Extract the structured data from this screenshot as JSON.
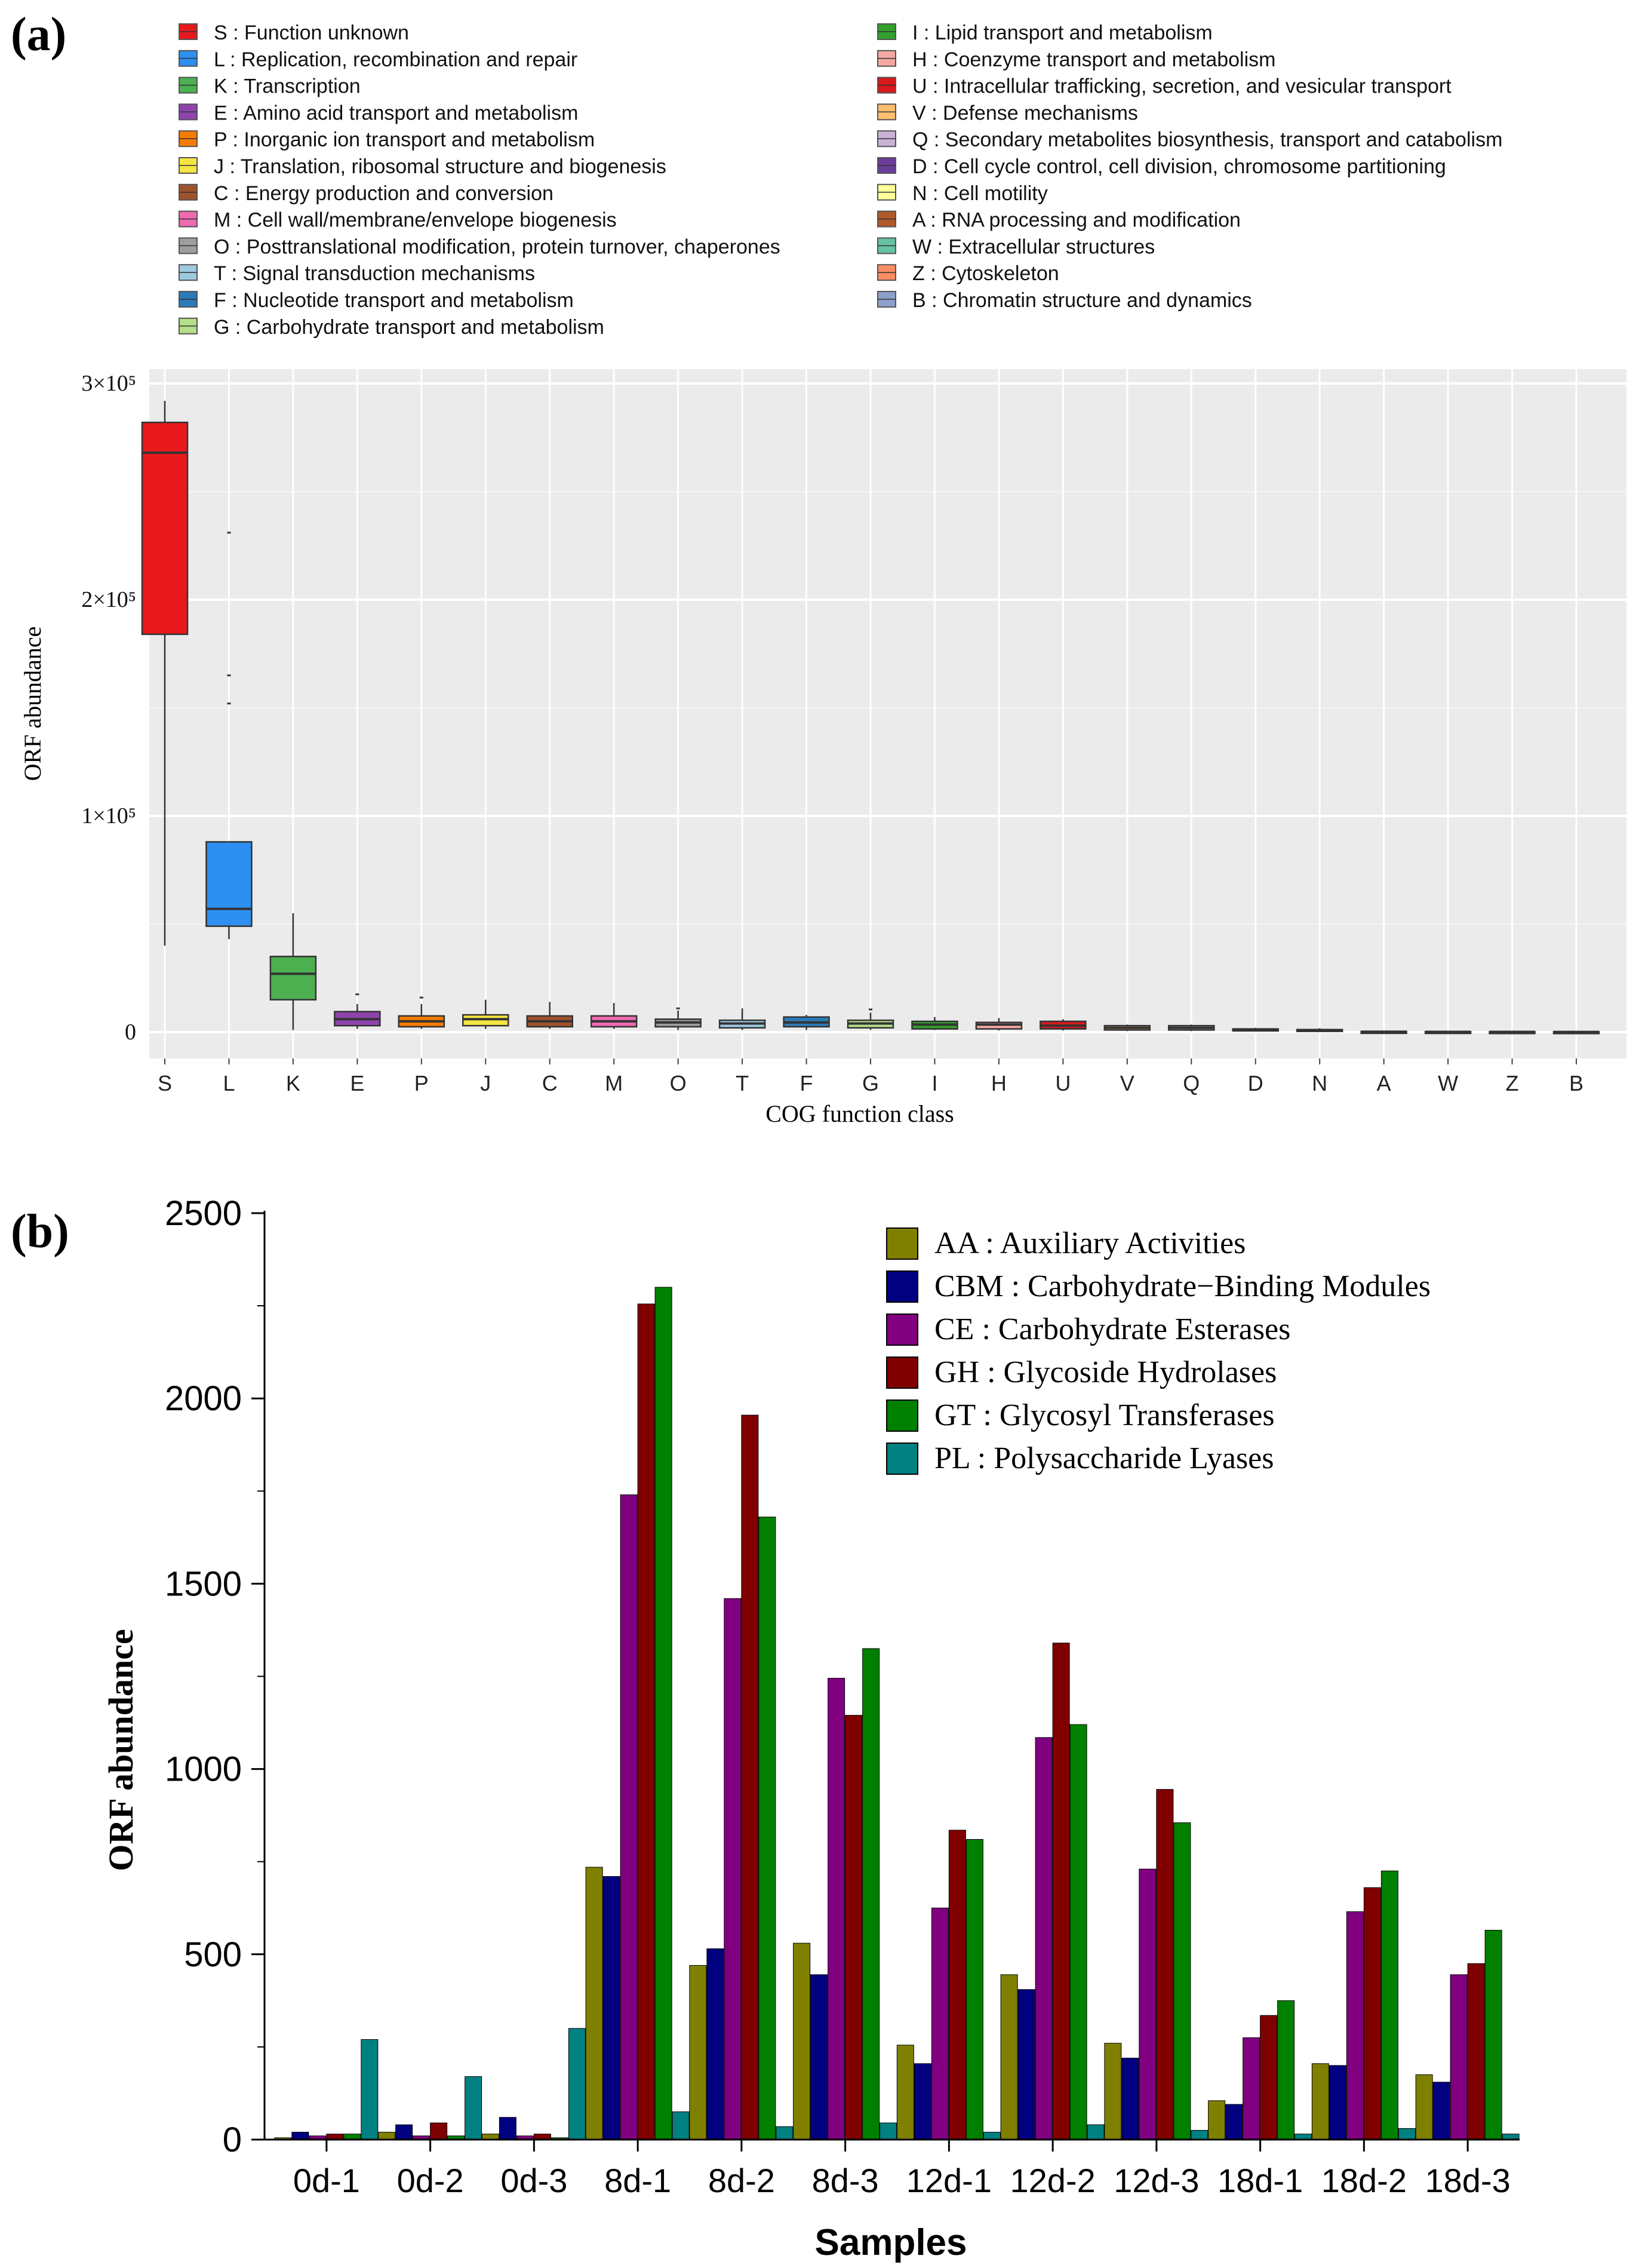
{
  "panel_a": {
    "panel_label": "(a)",
    "legend": [
      {
        "label": "S : Function unknown",
        "color": "#e8191c"
      },
      {
        "label": "L : Replication, recombination and repair",
        "color": "#2d8ff0"
      },
      {
        "label": "K : Transcription",
        "color": "#4caf50"
      },
      {
        "label": "E : Amino acid transport and metabolism",
        "color": "#8e44ad"
      },
      {
        "label": "P : Inorganic ion transport and metabolism",
        "color": "#f57c00"
      },
      {
        "label": "J : Translation, ribosomal structure and biogenesis",
        "color": "#f4e542"
      },
      {
        "label": "C : Energy production and conversion",
        "color": "#a0522d"
      },
      {
        "label": "M : Cell wall/membrane/envelope biogenesis",
        "color": "#f06ab0"
      },
      {
        "label": "O : Posttranslational modification, protein turnover, chaperones",
        "color": "#9e9e9e"
      },
      {
        "label": "T : Signal transduction mechanisms",
        "color": "#9ecae1"
      },
      {
        "label": "F : Nucleotide transport and metabolism",
        "color": "#2b7bba"
      },
      {
        "label": "G : Carbohydrate transport and metabolism",
        "color": "#b5df8a"
      },
      {
        "label": "I : Lipid transport and metabolism",
        "color": "#33a02c"
      },
      {
        "label": "H : Coenzyme transport and metabolism",
        "color": "#f4a8a0"
      },
      {
        "label": "U : Intracellular trafficking, secretion, and vesicular transport",
        "color": "#d7191c"
      },
      {
        "label": "V : Defense mechanisms",
        "color": "#fdbf6f"
      },
      {
        "label": "Q : Secondary metabolites biosynthesis, transport and catabolism",
        "color": "#cab2d6"
      },
      {
        "label": "D : Cell cycle control, cell division, chromosome partitioning",
        "color": "#6a3d9a"
      },
      {
        "label": "N : Cell motility",
        "color": "#ffff99"
      },
      {
        "label": "A : RNA processing and modification",
        "color": "#b15928"
      },
      {
        "label": "W : Extracellular structures",
        "color": "#66c2a5"
      },
      {
        "label": "Z : Cytoskeleton",
        "color": "#fc8d62"
      },
      {
        "label": "B : Chromatin structure and dynamics",
        "color": "#8da0cb"
      }
    ],
    "chart_data": {
      "type": "box",
      "categories": [
        "S",
        "L",
        "K",
        "E",
        "P",
        "J",
        "C",
        "M",
        "O",
        "T",
        "F",
        "G",
        "I",
        "H",
        "U",
        "V",
        "Q",
        "D",
        "N",
        "A",
        "W",
        "Z",
        "B"
      ],
      "boxes": [
        {
          "min": 40000,
          "q1": 184000,
          "median": 268000,
          "q3": 282000,
          "max": 292000,
          "outliers": []
        },
        {
          "min": 43000,
          "q1": 49000,
          "median": 57000,
          "q3": 88000,
          "max": 88000,
          "outliers": [
            152000,
            165000,
            231000
          ]
        },
        {
          "min": 1000,
          "q1": 15000,
          "median": 27000,
          "q3": 35000,
          "max": 55000,
          "outliers": []
        },
        {
          "min": 1500,
          "q1": 3000,
          "median": 6000,
          "q3": 9500,
          "max": 13000,
          "outliers": [
            17500
          ]
        },
        {
          "min": 1500,
          "q1": 2500,
          "median": 5000,
          "q3": 7500,
          "max": 13000,
          "outliers": [
            16000
          ]
        },
        {
          "min": 1500,
          "q1": 3000,
          "median": 6000,
          "q3": 8000,
          "max": 15000,
          "outliers": []
        },
        {
          "min": 1500,
          "q1": 2500,
          "median": 5000,
          "q3": 7500,
          "max": 14000,
          "outliers": []
        },
        {
          "min": 1500,
          "q1": 2500,
          "median": 5000,
          "q3": 7500,
          "max": 13500,
          "outliers": []
        },
        {
          "min": 1000,
          "q1": 2500,
          "median": 4500,
          "q3": 6000,
          "max": 10000,
          "outliers": [
            11000
          ]
        },
        {
          "min": 1000,
          "q1": 2000,
          "median": 4000,
          "q3": 5500,
          "max": 11000,
          "outliers": []
        },
        {
          "min": 1000,
          "q1": 2500,
          "median": 4500,
          "q3": 7000,
          "max": 8000,
          "outliers": []
        },
        {
          "min": 1000,
          "q1": 2000,
          "median": 4000,
          "q3": 5500,
          "max": 9000,
          "outliers": [
            10500
          ]
        },
        {
          "min": 1000,
          "q1": 1500,
          "median": 3500,
          "q3": 5000,
          "max": 7000,
          "outliers": []
        },
        {
          "min": 800,
          "q1": 1500,
          "median": 3500,
          "q3": 4500,
          "max": 6500,
          "outliers": []
        },
        {
          "min": 800,
          "q1": 1500,
          "median": 3000,
          "q3": 5000,
          "max": 6000,
          "outliers": []
        },
        {
          "min": 500,
          "q1": 1000,
          "median": 2000,
          "q3": 3000,
          "max": 3500,
          "outliers": []
        },
        {
          "min": 500,
          "q1": 1000,
          "median": 2000,
          "q3": 3000,
          "max": 3500,
          "outliers": []
        },
        {
          "min": 300,
          "q1": 600,
          "median": 1000,
          "q3": 1500,
          "max": 2000,
          "outliers": []
        },
        {
          "min": 200,
          "q1": 500,
          "median": 800,
          "q3": 1200,
          "max": 1800,
          "outliers": []
        },
        {
          "min": 50,
          "q1": 100,
          "median": 200,
          "q3": 300,
          "max": 400,
          "outliers": []
        },
        {
          "min": 50,
          "q1": 100,
          "median": 150,
          "q3": 250,
          "max": 300,
          "outliers": []
        },
        {
          "min": 50,
          "q1": 100,
          "median": 150,
          "q3": 200,
          "max": 300,
          "outliers": []
        },
        {
          "min": 50,
          "q1": 80,
          "median": 120,
          "q3": 180,
          "max": 250,
          "outliers": []
        }
      ],
      "ylim": [
        0,
        310000
      ],
      "y_ticks": [
        0,
        100000,
        200000,
        300000
      ],
      "y_tick_labels": [
        "0",
        "1×10⁵",
        "2×10⁵",
        "3×10⁵"
      ],
      "xlabel": "COG function class",
      "ylabel": "ORF abundance",
      "background": "#ebebeb",
      "grid": true
    }
  },
  "panel_b": {
    "panel_label": "(b)",
    "chart_data": {
      "type": "bar",
      "categories": [
        "0d-1",
        "0d-2",
        "0d-3",
        "8d-1",
        "8d-2",
        "8d-3",
        "12d-1",
        "12d-2",
        "12d-3",
        "18d-1",
        "18d-2",
        "18d-3"
      ],
      "series": [
        {
          "name": "AA : Auxiliary Activities",
          "color": "#808000",
          "values": [
            5,
            20,
            15,
            735,
            470,
            530,
            255,
            445,
            260,
            105,
            205,
            175
          ]
        },
        {
          "name": "CBM : Carbohydrate−Binding Modules",
          "color": "#000080",
          "values": [
            20,
            40,
            60,
            710,
            515,
            445,
            205,
            405,
            220,
            95,
            200,
            155
          ]
        },
        {
          "name": "CE : Carbohydrate Esterases",
          "color": "#800080",
          "values": [
            10,
            10,
            10,
            1740,
            1460,
            1245,
            625,
            1085,
            730,
            275,
            615,
            445
          ]
        },
        {
          "name": "GH : Glycoside Hydrolases",
          "color": "#800000",
          "values": [
            15,
            45,
            15,
            2255,
            1955,
            1145,
            835,
            1340,
            945,
            335,
            680,
            475
          ]
        },
        {
          "name": "GT : Glycosyl Transferases",
          "color": "#008000",
          "values": [
            15,
            10,
            5,
            2300,
            1680,
            1325,
            810,
            1120,
            855,
            375,
            725,
            565
          ]
        },
        {
          "name": "PL : Polysaccharide Lyases",
          "color": "#008080",
          "values": [
            270,
            170,
            300,
            75,
            35,
            45,
            20,
            40,
            25,
            15,
            30,
            15
          ]
        }
      ],
      "ylim": [
        0,
        2500
      ],
      "y_ticks": [
        0,
        500,
        1000,
        1500,
        2000,
        2500
      ],
      "xlabel": "Samples",
      "ylabel": "ORF abundance",
      "legend_position": "top-right"
    }
  }
}
